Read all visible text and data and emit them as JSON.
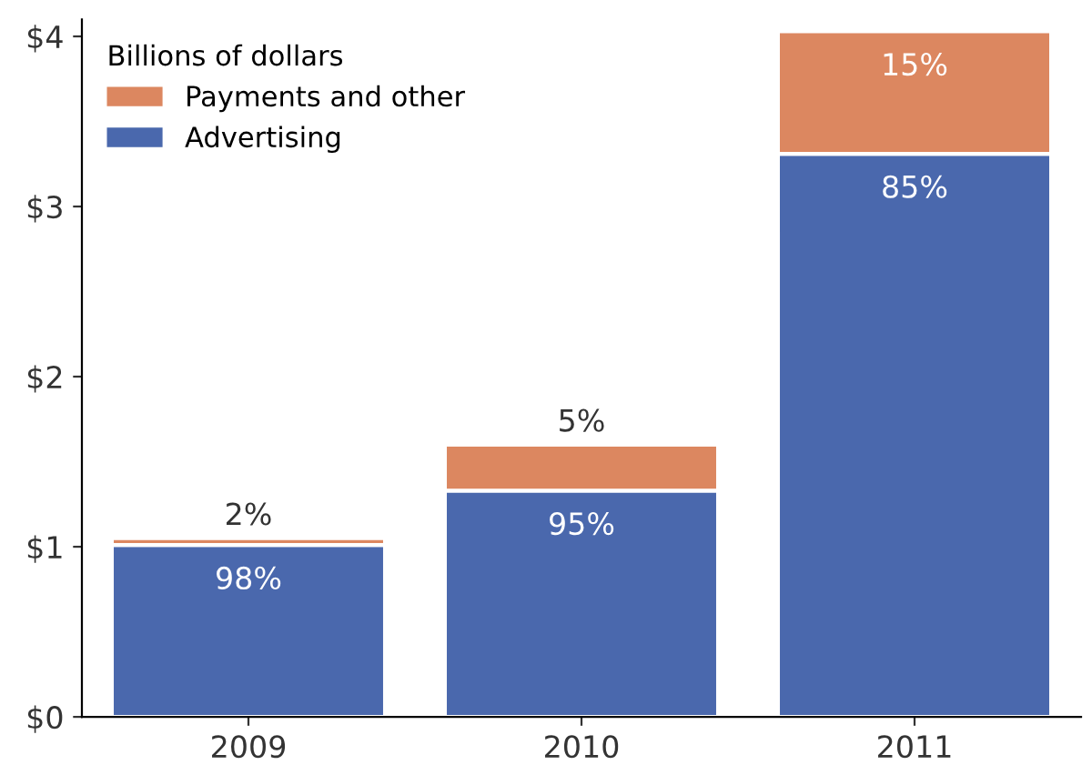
{
  "chart_data": {
    "type": "bar",
    "stacked": true,
    "legend_title": "Billions of dollars",
    "legend": "top left",
    "grid": false,
    "categories": [
      "2009",
      "2010",
      "2011"
    ],
    "series": [
      {
        "name": "Advertising",
        "color": "#4a68ad",
        "values": [
          1.01,
          1.33,
          3.31
        ]
      },
      {
        "name": "Payments and other",
        "color": "#dc8760",
        "values": [
          0.04,
          0.27,
          0.72
        ]
      }
    ],
    "annotations": [
      {
        "text": "98%",
        "x": "2009",
        "y": 1.01
      },
      {
        "text": "2%",
        "x": "2009",
        "y": 1.05
      },
      {
        "text": "95%",
        "x": "2010",
        "y": 1.33
      },
      {
        "text": "5%",
        "x": "2010",
        "y": 1.6
      },
      {
        "text": "85%",
        "x": "2011",
        "y": 3.31
      },
      {
        "text": "15%",
        "x": "2011",
        "y": 4.03
      }
    ],
    "ylim": [
      0,
      4.1
    ],
    "yticks": [
      {
        "value": 0,
        "label": "$0"
      },
      {
        "value": 1,
        "label": "$1"
      },
      {
        "value": 2,
        "label": "$2"
      },
      {
        "value": 3,
        "label": "$3"
      },
      {
        "value": 4,
        "label": "$4"
      }
    ]
  }
}
